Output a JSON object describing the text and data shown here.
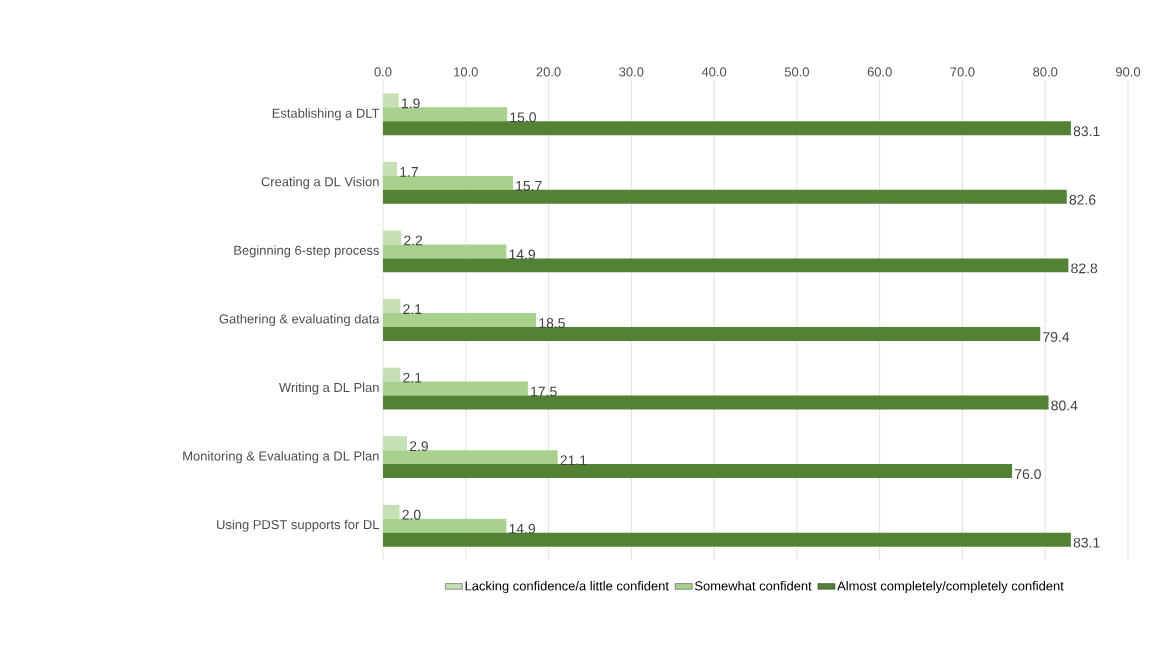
{
  "chart_data": {
    "type": "bar",
    "orientation": "horizontal",
    "categories": [
      "Establishing a DLT",
      "Creating a DL Vision",
      "Beginning 6-step process",
      "Gathering & evaluating data",
      "Writing a DL Plan",
      "Monitoring & Evaluating a DL Plan",
      "Using PDST supports for DL"
    ],
    "series": [
      {
        "name": "Lacking confidence/a little confident",
        "color": "#c5e0b4",
        "values": [
          1.9,
          1.7,
          2.2,
          2.1,
          2.1,
          2.9,
          2.0
        ],
        "value_labels": [
          "1.9",
          "1.7",
          "2.2",
          "2.1",
          "2.1",
          "2.9",
          "2.0"
        ]
      },
      {
        "name": "Somewhat confident",
        "color": "#a9d18e",
        "values": [
          15.0,
          15.7,
          14.9,
          18.5,
          17.5,
          21.1,
          14.9
        ],
        "value_labels": [
          "15.0",
          "15.7",
          "14.9",
          "18.5",
          "17.5",
          "21.1",
          "14.9"
        ]
      },
      {
        "name": "Almost completely/completely  confident",
        "color": "#548235",
        "values": [
          83.1,
          82.6,
          82.8,
          79.4,
          80.4,
          76.0,
          83.1
        ],
        "value_labels": [
          "83.1",
          "82.6",
          "82.8",
          "79.4",
          "80.4",
          "76.0",
          "83.1"
        ]
      }
    ],
    "xlim": [
      0,
      90
    ],
    "xticks": [
      {
        "value": 0,
        "label": "0.0"
      },
      {
        "value": 10,
        "label": "10.0"
      },
      {
        "value": 20,
        "label": "20.0"
      },
      {
        "value": 30,
        "label": "30.0"
      },
      {
        "value": 40,
        "label": "40.0"
      },
      {
        "value": 50,
        "label": "50.0"
      },
      {
        "value": 60,
        "label": "60.0"
      },
      {
        "value": 70,
        "label": "70.0"
      },
      {
        "value": 80,
        "label": "80.0"
      },
      {
        "value": 90,
        "label": "90.0"
      }
    ],
    "grid": "x",
    "legend": "bottom"
  }
}
